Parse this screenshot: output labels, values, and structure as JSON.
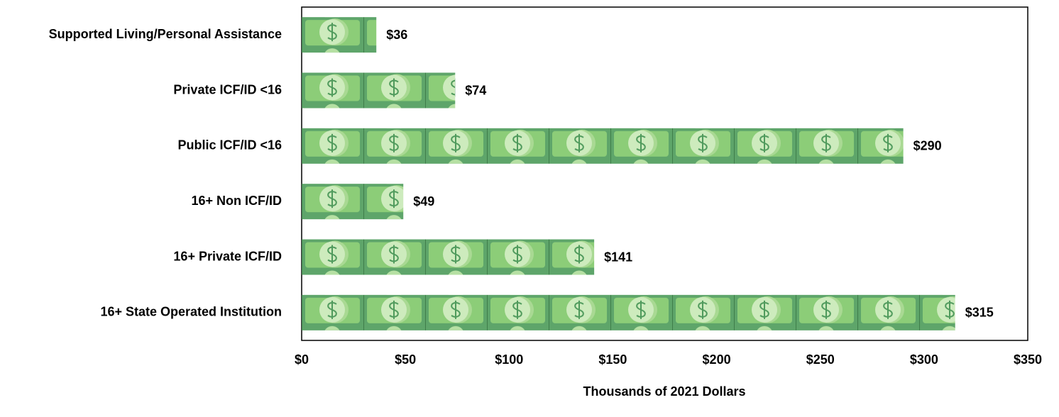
{
  "chart_data": {
    "type": "bar",
    "orientation": "horizontal",
    "x_label": "Thousands of 2021  Dollars",
    "categories": [
      "Supported Living/Personal Assistance",
      "Private ICF/ID <16",
      "Public ICF/ID <16",
      "16+ Non ICF/ID",
      "16+ Private ICF/ID",
      "16+ State Operated Institution"
    ],
    "values": [
      36,
      74,
      290,
      49,
      141,
      315
    ],
    "value_labels": [
      "$36",
      "$74",
      "$290",
      "$49",
      "$141",
      "$315"
    ],
    "color": "#5ea56a",
    "xlim": [
      0,
      350
    ],
    "xticks": [
      {
        "value": 0,
        "label": "$0"
      },
      {
        "value": 50,
        "label": "$50"
      },
      {
        "value": 100,
        "label": "$100"
      },
      {
        "value": 150,
        "label": "$150"
      },
      {
        "value": 200,
        "label": "$200"
      },
      {
        "value": 250,
        "label": "$250"
      },
      {
        "value": 300,
        "label": "$300"
      },
      {
        "value": 350,
        "label": "$350"
      }
    ],
    "grid": false
  }
}
